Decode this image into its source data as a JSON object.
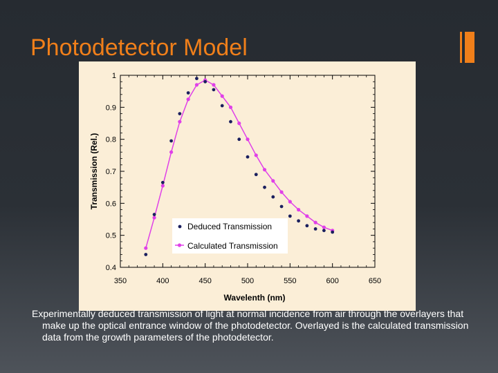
{
  "slide": {
    "title": "Photodetector Model",
    "caption": "Experimentally deduced transmission of light at normal incidence from air through the overlayers that make up the optical entrance window of the photodetector. Overlayed is the calculated transmission data from the growth parameters of the photodetector."
  },
  "colors": {
    "background": "#2b3036",
    "title": "#f07f1a",
    "accent": "#f07f1a",
    "plot_background": "#fbeed7",
    "deduced": "#1a1f5e",
    "calculated": "#e040e8"
  },
  "chart_data": {
    "type": "scatter",
    "xlabel": "Wavelenth (nm)",
    "ylabel": "Transmission (Rel.)",
    "xlim": [
      350,
      650
    ],
    "ylim": [
      0.4,
      1.0
    ],
    "xticks": [
      350,
      400,
      450,
      500,
      550,
      600,
      650
    ],
    "yticks": [
      0.4,
      0.5,
      0.6,
      0.7,
      0.8,
      0.9,
      1.0
    ],
    "xtick_labels": [
      "350",
      "400",
      "450",
      "500",
      "550",
      "600",
      "650"
    ],
    "ytick_labels": [
      "0.4",
      "0.5",
      "0.6",
      "0.7",
      "0.8",
      "0.9",
      "1"
    ],
    "legend_position": "bottom-center",
    "series": [
      {
        "name": "Deduced Transmission",
        "style": "markers",
        "x": [
          380,
          390,
          400,
          410,
          420,
          430,
          440,
          450,
          460,
          470,
          480,
          490,
          500,
          510,
          520,
          530,
          540,
          550,
          560,
          570,
          580,
          590,
          600
        ],
        "y": [
          0.44,
          0.565,
          0.665,
          0.795,
          0.88,
          0.945,
          0.99,
          0.98,
          0.955,
          0.905,
          0.855,
          0.8,
          0.745,
          0.69,
          0.65,
          0.62,
          0.59,
          0.56,
          0.545,
          0.53,
          0.52,
          0.515,
          0.51
        ]
      },
      {
        "name": "Calculated Transmission",
        "style": "line+markers",
        "x": [
          380,
          390,
          400,
          410,
          420,
          430,
          440,
          450,
          460,
          470,
          480,
          490,
          500,
          510,
          520,
          530,
          540,
          550,
          560,
          570,
          580,
          590,
          600
        ],
        "y": [
          0.46,
          0.555,
          0.655,
          0.76,
          0.855,
          0.925,
          0.97,
          0.985,
          0.97,
          0.935,
          0.9,
          0.85,
          0.8,
          0.75,
          0.705,
          0.67,
          0.635,
          0.605,
          0.58,
          0.56,
          0.54,
          0.525,
          0.515
        ]
      }
    ]
  }
}
